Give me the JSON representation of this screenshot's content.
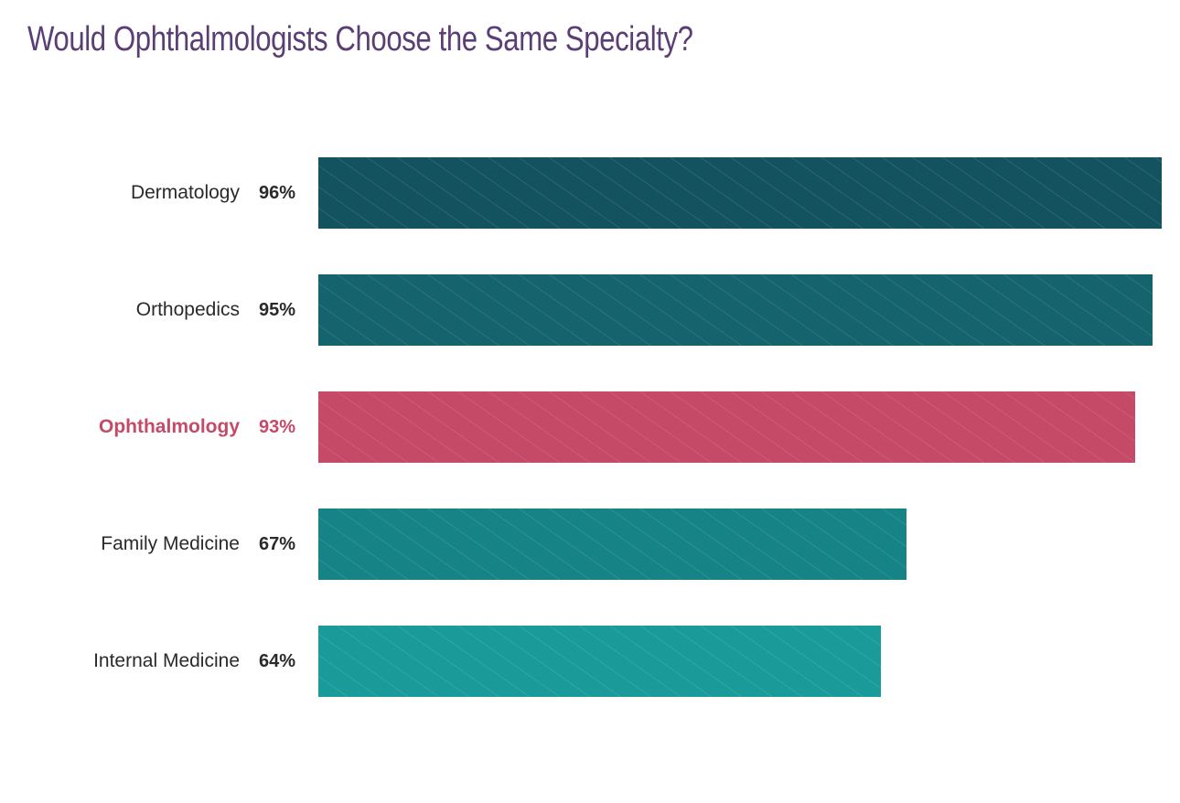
{
  "title": "Would Ophthalmologists Choose the Same Specialty?",
  "chart_data": {
    "type": "bar",
    "orientation": "horizontal",
    "title": "Would Ophthalmologists Choose the Same Specialty?",
    "xlabel": "",
    "ylabel": "",
    "categories": [
      "Dermatology",
      "Orthopedics",
      "Ophthalmology",
      "Family Medicine",
      "Internal Medicine"
    ],
    "values": [
      96,
      95,
      93,
      67,
      64
    ],
    "value_labels": [
      "96%",
      "95%",
      "93%",
      "67%",
      "64%"
    ],
    "highlighted": "Ophthalmology",
    "grid": false,
    "legend": null,
    "xlim": [
      0,
      96
    ]
  },
  "rows": [
    {
      "label": "Dermatology",
      "value_label": "96%",
      "value": 96,
      "color": "#13535f",
      "highlight": false
    },
    {
      "label": "Orthopedics",
      "value_label": "95%",
      "value": 95,
      "color": "#14636d",
      "highlight": false
    },
    {
      "label": "Ophthalmology",
      "value_label": "93%",
      "value": 93,
      "color": "#c54a68",
      "highlight": true
    },
    {
      "label": "Family Medicine",
      "value_label": "67%",
      "value": 67,
      "color": "#168486",
      "highlight": false
    },
    {
      "label": "Internal Medicine",
      "value_label": "64%",
      "value": 64,
      "color": "#1b9a9a",
      "highlight": false
    }
  ]
}
